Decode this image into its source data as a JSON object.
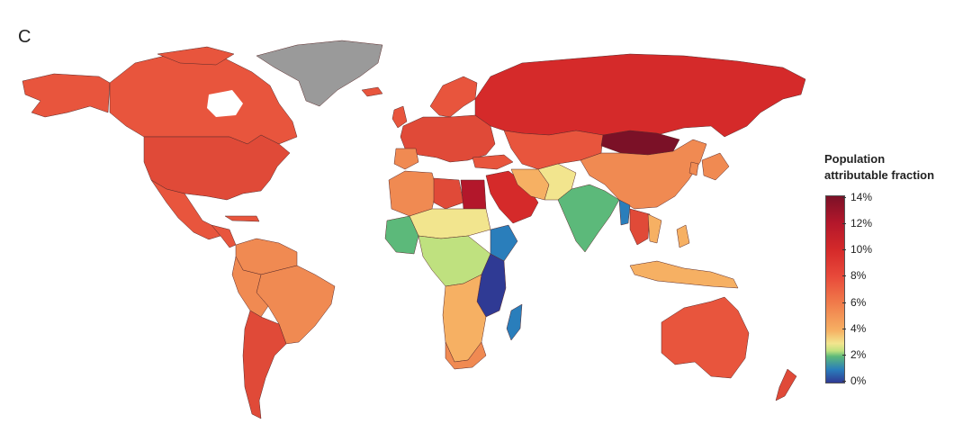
{
  "panel_label": "C",
  "legend": {
    "title_line1": "Population",
    "title_line2": "attributable fraction",
    "ticks": [
      "14%",
      "12%",
      "10%",
      "8%",
      "6%",
      "4%",
      "2%",
      "0%"
    ]
  },
  "colors": {
    "no_data": "#9a9a9a",
    "high": "#7b1127",
    "red": "#d52a2a",
    "orange_red": "#e8553d",
    "orange": "#f08a52",
    "light_orange": "#f6b063",
    "yellow": "#f2e58e",
    "light_green": "#bfe17f",
    "green": "#5cb97a",
    "blue": "#2a7ebb",
    "dark_blue": "#2f3a94"
  }
}
